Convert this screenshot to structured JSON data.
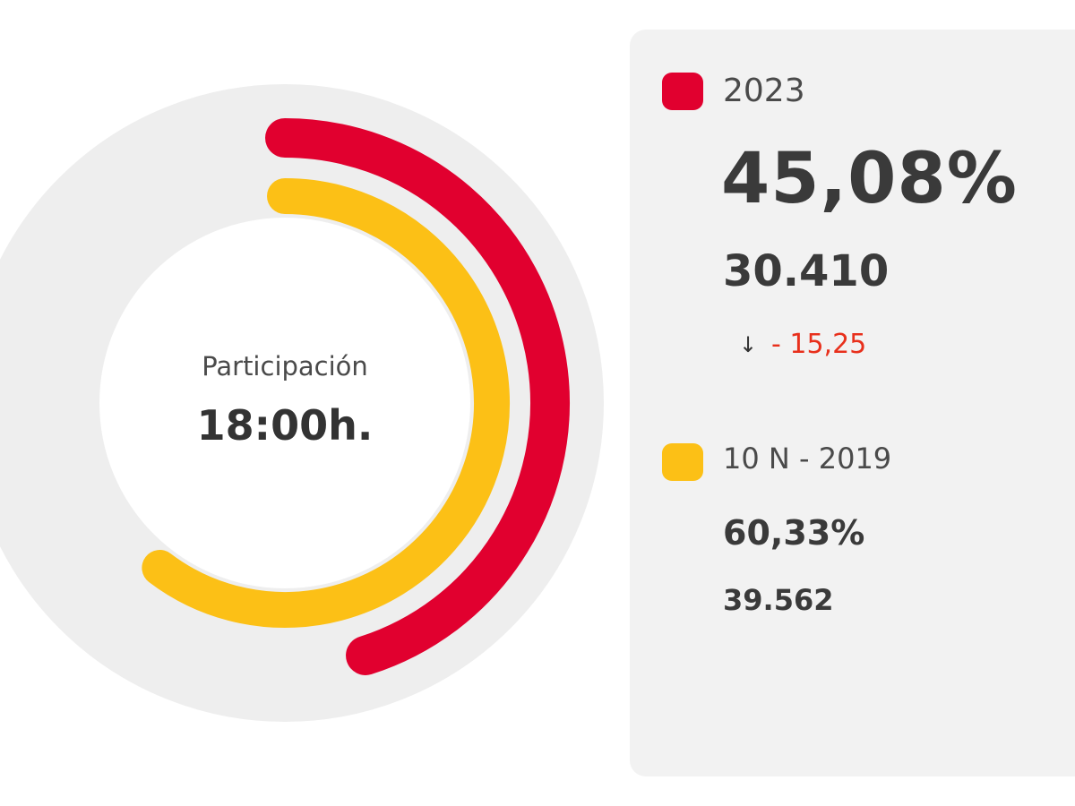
{
  "center": {
    "label": "Participación",
    "time": "18:00h."
  },
  "current": {
    "year": "2023",
    "percent": "45,08%",
    "count": "30.410",
    "delta": "- 15,25",
    "color": "#e1002f"
  },
  "previous": {
    "year": "10 N - 2019",
    "percent": "60,33%",
    "count": "39.562",
    "color": "#fcc016"
  },
  "colors": {
    "track": "#eeeeee",
    "delta_negative": "#e8301c",
    "panel_bg": "#f2f2f2"
  },
  "chart_data": {
    "type": "pie",
    "title": "",
    "series": [
      {
        "name": "2023",
        "value": 45.08,
        "max": 100
      },
      {
        "name": "10 N - 2019",
        "value": 60.33,
        "max": 100
      }
    ]
  }
}
